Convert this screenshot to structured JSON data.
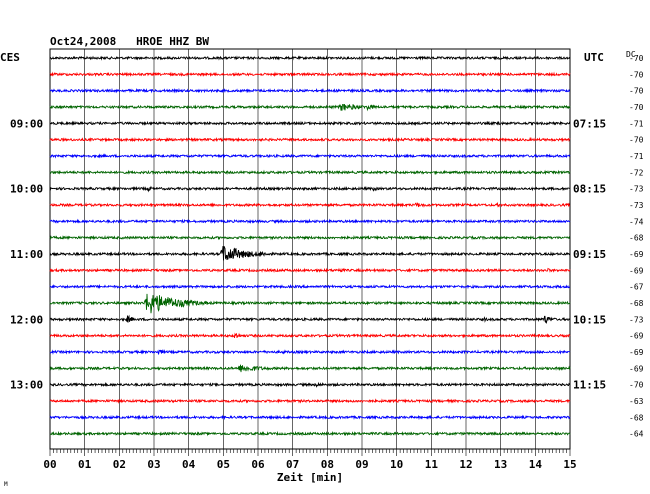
{
  "header": {
    "title": "Oct24,2008   HROE HHZ BW",
    "left_tz": "CES",
    "right_tz": "UTC",
    "dc_label": "DC",
    "corner_mark": "M"
  },
  "chart_data": {
    "type": "line",
    "title": "Oct24,2008   HROE HHZ BW",
    "xlabel": "Zeit [min]",
    "xlim": [
      0,
      15
    ],
    "x_ticks": [
      "00",
      "01",
      "02",
      "03",
      "04",
      "05",
      "06",
      "07",
      "08",
      "09",
      "10",
      "11",
      "12",
      "13",
      "14",
      "15"
    ],
    "grid": true,
    "trace_colors": [
      "#000000",
      "#ff0000",
      "#0000ff",
      "#006400"
    ],
    "left_time_labels": [
      {
        "row": 4,
        "text": "09:00"
      },
      {
        "row": 8,
        "text": "10:00"
      },
      {
        "row": 12,
        "text": "11:00"
      },
      {
        "row": 16,
        "text": "12:00"
      },
      {
        "row": 20,
        "text": "13:00"
      }
    ],
    "right_time_labels": [
      {
        "row": 4,
        "text": "07:15"
      },
      {
        "row": 8,
        "text": "08:15"
      },
      {
        "row": 12,
        "text": "09:15"
      },
      {
        "row": 16,
        "text": "10:15"
      },
      {
        "row": 20,
        "text": "11:15"
      }
    ],
    "dc_offsets": [
      "-70",
      "-70",
      "-70",
      "-70",
      "-71",
      "-70",
      "-71",
      "-72",
      "-73",
      "-73",
      "-74",
      "-68",
      "-69",
      "-69",
      "-67",
      "-68",
      "-73",
      "-69",
      "-69",
      "-69",
      "-70",
      "-63",
      "-68",
      "-64"
    ],
    "events": [
      {
        "row": 3,
        "minute": 8.3,
        "amp": 5,
        "dur": 1.8
      },
      {
        "row": 3,
        "minute": 9.1,
        "amp": 4,
        "dur": 0.8
      },
      {
        "row": 4,
        "minute": 12.9,
        "amp": 4,
        "dur": 0.3
      },
      {
        "row": 8,
        "minute": 2.8,
        "amp": 4,
        "dur": 0.4
      },
      {
        "row": 8,
        "minute": 9.3,
        "amp": 3,
        "dur": 0.5
      },
      {
        "row": 9,
        "minute": 10.5,
        "amp": 3,
        "dur": 1.2
      },
      {
        "row": 9,
        "minute": 12.9,
        "amp": 3,
        "dur": 0.3
      },
      {
        "row": 12,
        "minute": 4.9,
        "amp": 11,
        "dur": 2.0
      },
      {
        "row": 12,
        "minute": 6.0,
        "amp": 4,
        "dur": 1.0
      },
      {
        "row": 13,
        "minute": 8.3,
        "amp": 3,
        "dur": 0.6
      },
      {
        "row": 13,
        "minute": 14.3,
        "amp": 3,
        "dur": 0.5
      },
      {
        "row": 15,
        "minute": 2.7,
        "amp": 14,
        "dur": 2.5
      },
      {
        "row": 16,
        "minute": 2.2,
        "amp": 5,
        "dur": 0.6
      },
      {
        "row": 16,
        "minute": 14.2,
        "amp": 6,
        "dur": 0.7
      },
      {
        "row": 16,
        "minute": 12.5,
        "amp": 3,
        "dur": 0.4
      },
      {
        "row": 17,
        "minute": 5.3,
        "amp": 6,
        "dur": 0.4
      },
      {
        "row": 18,
        "minute": 3.1,
        "amp": 4,
        "dur": 0.5
      },
      {
        "row": 18,
        "minute": 6.7,
        "amp": 3,
        "dur": 0.3
      },
      {
        "row": 19,
        "minute": 5.4,
        "amp": 5,
        "dur": 2.0
      },
      {
        "row": 20,
        "minute": 7.6,
        "amp": 3,
        "dur": 0.9
      }
    ]
  }
}
